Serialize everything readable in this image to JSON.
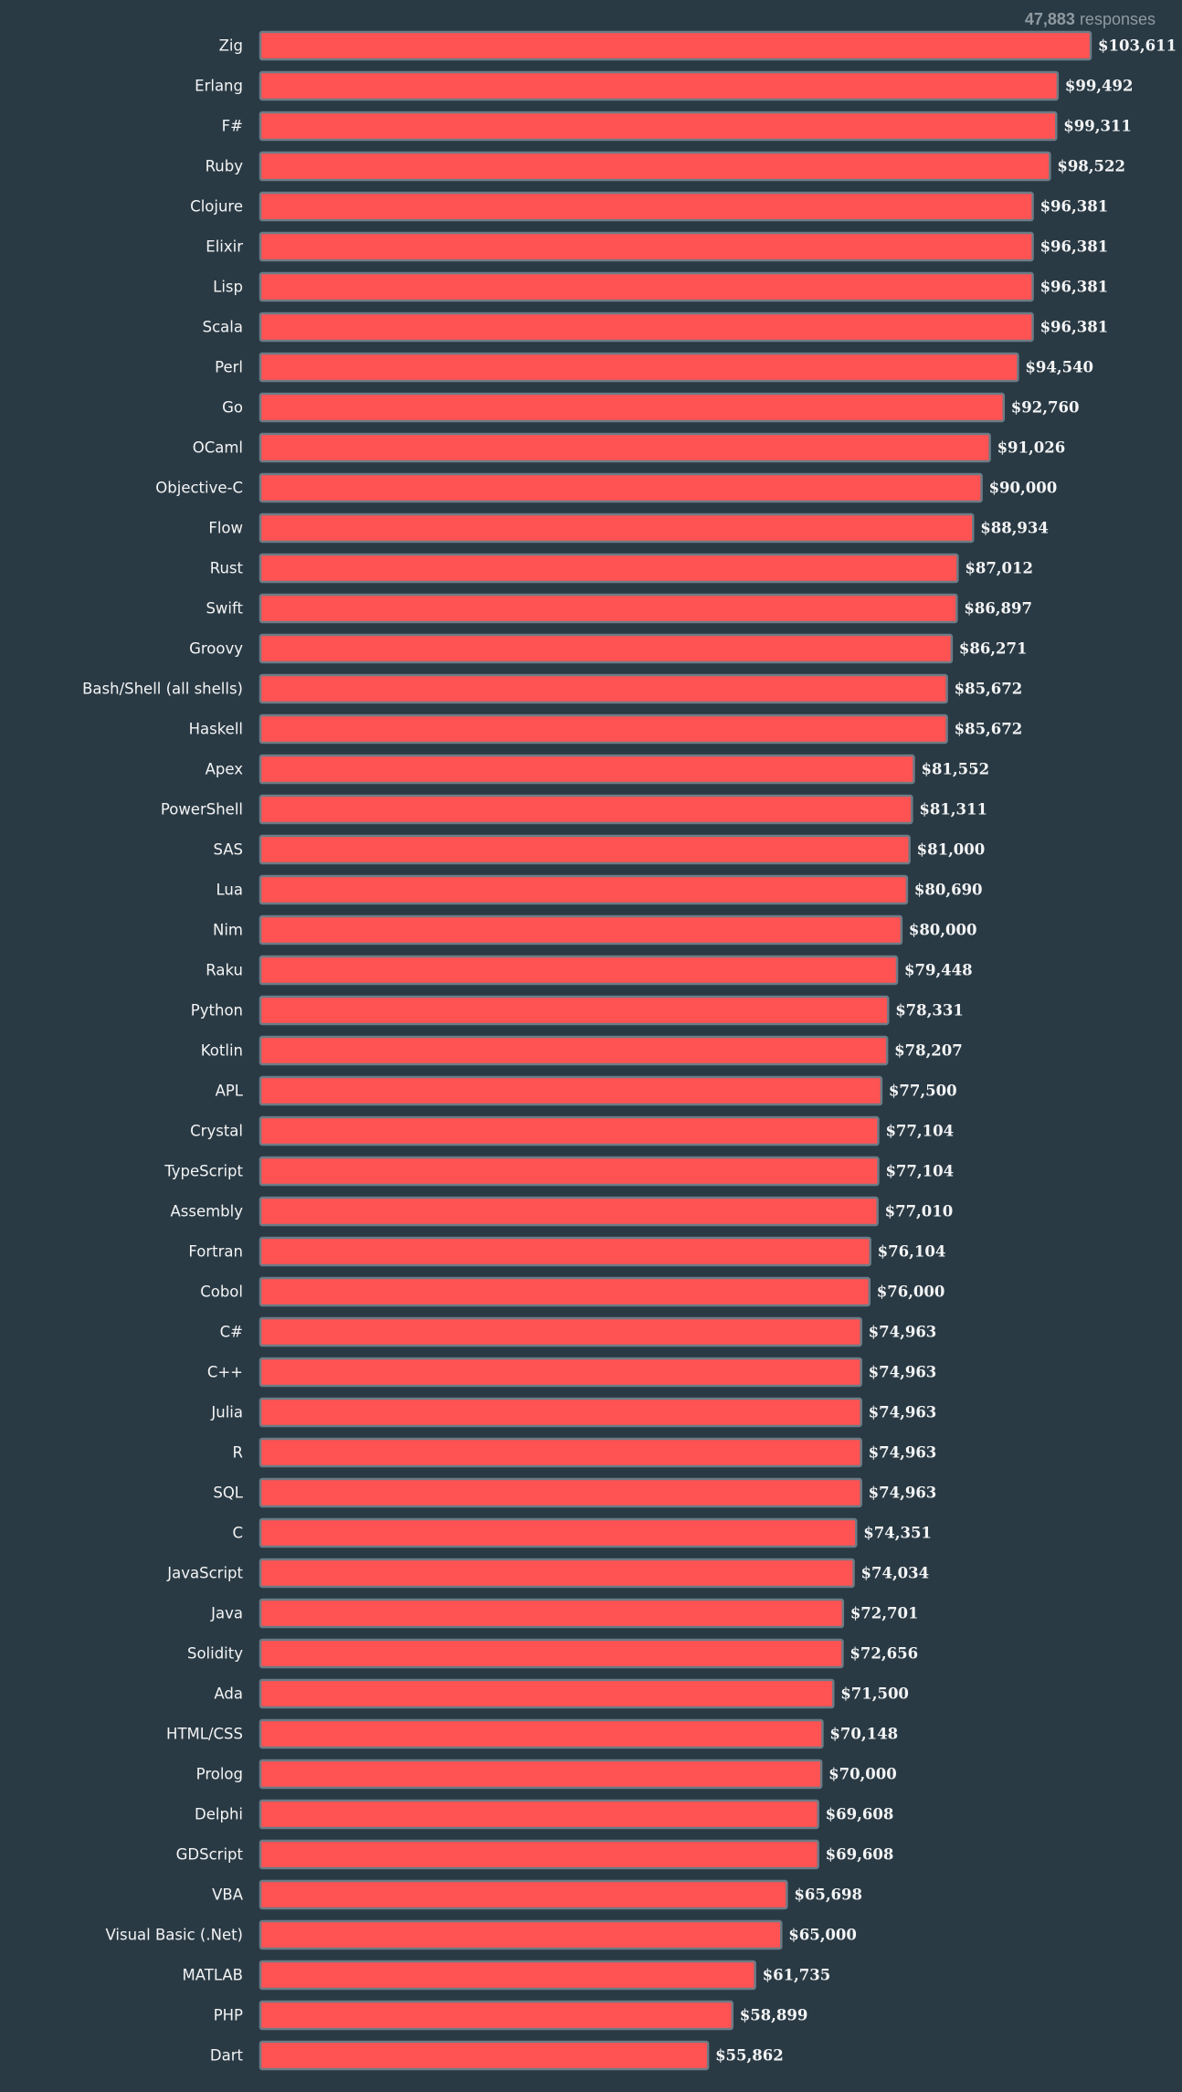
{
  "header": {
    "responses_count": "47,883",
    "responses_label": "responses"
  },
  "colors": {
    "background": "#2a3a44",
    "bar_fill": "#ff5252",
    "bar_stroke": "#6d7b85",
    "text": "#f3f4f5",
    "muted_text": "#8f9aa1"
  },
  "chart_data": {
    "type": "bar",
    "orientation": "horizontal",
    "title": "",
    "xlabel": "",
    "ylabel": "",
    "xlim": [
      0,
      103611
    ],
    "value_prefix": "$",
    "categories": [
      "Zig",
      "Erlang",
      "F#",
      "Ruby",
      "Clojure",
      "Elixir",
      "Lisp",
      "Scala",
      "Perl",
      "Go",
      "OCaml",
      "Objective-C",
      "Flow",
      "Rust",
      "Swift",
      "Groovy",
      "Bash/Shell (all shells)",
      "Haskell",
      "Apex",
      "PowerShell",
      "SAS",
      "Lua",
      "Nim",
      "Raku",
      "Python",
      "Kotlin",
      "APL",
      "Crystal",
      "TypeScript",
      "Assembly",
      "Fortran",
      "Cobol",
      "C#",
      "C++",
      "Julia",
      "R",
      "SQL",
      "C",
      "JavaScript",
      "Java",
      "Solidity",
      "Ada",
      "HTML/CSS",
      "Prolog",
      "Delphi",
      "GDScript",
      "VBA",
      "Visual Basic (.Net)",
      "MATLAB",
      "PHP",
      "Dart"
    ],
    "values": [
      103611,
      99492,
      99311,
      98522,
      96381,
      96381,
      96381,
      96381,
      94540,
      92760,
      91026,
      90000,
      88934,
      87012,
      86897,
      86271,
      85672,
      85672,
      81552,
      81311,
      81000,
      80690,
      80000,
      79448,
      78331,
      78207,
      77500,
      77104,
      77104,
      77010,
      76104,
      76000,
      74963,
      74963,
      74963,
      74963,
      74963,
      74351,
      74034,
      72701,
      72656,
      71500,
      70148,
      70000,
      69608,
      69608,
      65698,
      65000,
      61735,
      58899,
      55862
    ],
    "value_labels": [
      "$103,611",
      "$99,492",
      "$99,311",
      "$98,522",
      "$96,381",
      "$96,381",
      "$96,381",
      "$96,381",
      "$94,540",
      "$92,760",
      "$91,026",
      "$90,000",
      "$88,934",
      "$87,012",
      "$86,897",
      "$86,271",
      "$85,672",
      "$85,672",
      "$81,552",
      "$81,311",
      "$81,000",
      "$80,690",
      "$80,000",
      "$79,448",
      "$78,331",
      "$78,207",
      "$77,500",
      "$77,104",
      "$77,104",
      "$77,010",
      "$76,104",
      "$76,000",
      "$74,963",
      "$74,963",
      "$74,963",
      "$74,963",
      "$74,963",
      "$74,351",
      "$74,034",
      "$72,701",
      "$72,656",
      "$71,500",
      "$70,148",
      "$70,000",
      "$69,608",
      "$69,608",
      "$65,698",
      "$65,000",
      "$61,735",
      "$58,899",
      "$55,862"
    ]
  }
}
